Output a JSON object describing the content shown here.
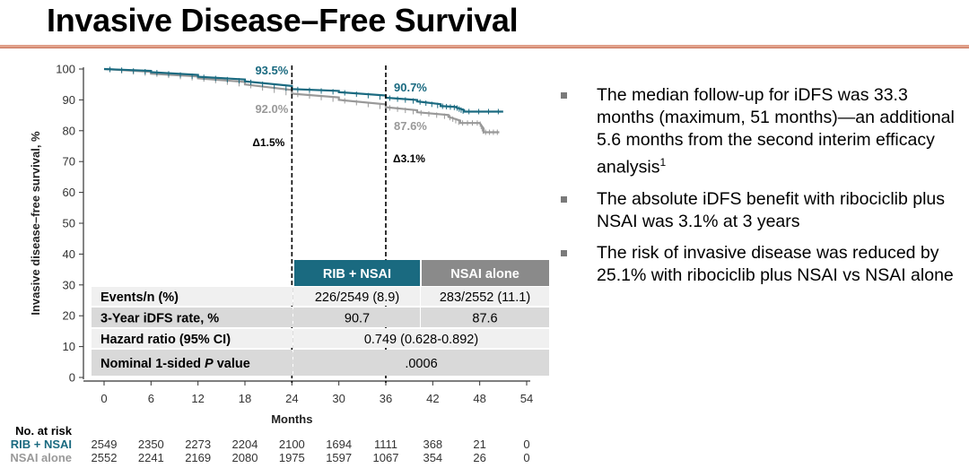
{
  "title": "Invasive Disease–Free Survival",
  "bullets": [
    {
      "text": "The median follow-up for iDFS was 33.3 months (maximum, 51 months)—an additional 5.6 months from the second interim efficacy analysis",
      "sup": "1"
    },
    {
      "text": "The absolute iDFS benefit with ribociclib plus NSAI was 3.1% at 3 years",
      "sup": ""
    },
    {
      "text": "The risk of invasive disease was reduced by 25.1% with ribociclib plus NSAI vs NSAI alone",
      "sup": ""
    }
  ],
  "chart_data": {
    "type": "line",
    "xlabel": "Months",
    "ylabel": "Invasive disease–free survival, %",
    "xlim": [
      0,
      54
    ],
    "ylim": [
      0,
      100
    ],
    "xticks": [
      0,
      6,
      12,
      18,
      24,
      30,
      36,
      42,
      48,
      54
    ],
    "yticks": [
      0,
      10,
      20,
      30,
      40,
      50,
      60,
      70,
      80,
      90,
      100
    ],
    "colors": {
      "rib": "#1a6a80",
      "nsai": "#999999"
    },
    "series": [
      {
        "name": "RIB + NSAI",
        "color": "#1a6a80",
        "x": [
          0,
          6,
          12,
          18,
          24,
          30,
          36,
          40,
          43,
          45,
          46,
          51
        ],
        "y": [
          100,
          99,
          97.5,
          96,
          93.5,
          92.5,
          90.7,
          89.5,
          88,
          87.5,
          86.2,
          86.2
        ]
      },
      {
        "name": "NSAI alone",
        "color": "#999999",
        "x": [
          0,
          6,
          12,
          18,
          24,
          30,
          36,
          40,
          44,
          45.5,
          48,
          48.5,
          50.5
        ],
        "y": [
          100,
          98.5,
          97,
          95,
          92,
          90,
          87.6,
          86,
          84.5,
          82.5,
          82.5,
          79.5,
          79.5
        ]
      }
    ],
    "reference_lines": [
      24,
      36
    ],
    "annotations": [
      {
        "x": 24,
        "rib": "93.5%",
        "nsai": "92.0%",
        "delta": "Δ1.5%"
      },
      {
        "x": 36,
        "rib": "90.7%",
        "nsai": "87.6%",
        "delta": "Δ3.1%"
      }
    ],
    "table": {
      "headers": [
        "RIB + NSAI",
        "NSAI alone"
      ],
      "rows": [
        {
          "label": "Events/n (%)",
          "values": [
            "226/2549 (8.9)",
            "283/2552 (11.1)"
          ]
        },
        {
          "label": "3-Year iDFS rate, %",
          "values": [
            "90.7",
            "87.6"
          ]
        },
        {
          "label": "Hazard ratio (95% CI)",
          "values": [
            "0.749 (0.628-0.892)"
          ]
        },
        {
          "label_pre": "Nominal 1-sided ",
          "label_italic": "P",
          "label_post": " value",
          "values": [
            ".0006"
          ]
        }
      ]
    },
    "at_risk": {
      "title": "No. at risk",
      "rows": [
        {
          "name": "RIB + NSAI",
          "values": [
            2549,
            2350,
            2273,
            2204,
            2100,
            1694,
            1111,
            368,
            21,
            0
          ]
        },
        {
          "name": "NSAI alone",
          "values": [
            2552,
            2241,
            2169,
            2080,
            1975,
            1597,
            1067,
            354,
            26,
            0
          ]
        }
      ]
    }
  }
}
